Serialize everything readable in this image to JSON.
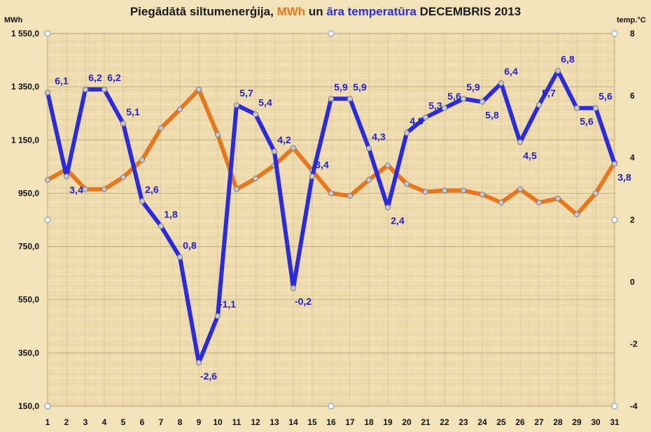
{
  "chart_data": {
    "type": "line",
    "title": {
      "part1": "Piegādātā siltumenerģija, ",
      "part2": "MWh",
      "part3": " un ",
      "part4": "āra temperatūra",
      "part5": " DECEMBRIS 2013"
    },
    "left_axis_label": "MWh",
    "right_axis_label": "temp.°C",
    "left_ylim": [
      150,
      1550
    ],
    "left_ticks": [
      "1 550,0",
      "1 350,0",
      "1 150,0",
      "950,0",
      "750,0",
      "550,0",
      "350,0",
      "150,0"
    ],
    "right_ylim": [
      -4,
      8
    ],
    "right_ticks": [
      "8",
      "6",
      "4",
      "2",
      "0",
      "-2",
      "-4"
    ],
    "grid": true,
    "categories": [
      "1",
      "2",
      "3",
      "4",
      "5",
      "6",
      "7",
      "8",
      "9",
      "10",
      "11",
      "12",
      "13",
      "14",
      "15",
      "16",
      "17",
      "18",
      "19",
      "20",
      "21",
      "22",
      "23",
      "24",
      "25",
      "26",
      "27",
      "28",
      "29",
      "30",
      "31"
    ],
    "series": [
      {
        "axis": "left",
        "color": "#e8761c",
        "values": [
          1000,
          1040,
          965,
          965,
          1010,
          1075,
          1195,
          1265,
          1340,
          1170,
          965,
          1005,
          1055,
          1120,
          1035,
          950,
          940,
          1000,
          1055,
          985,
          955,
          960,
          960,
          945,
          915,
          965,
          915,
          930,
          870,
          950,
          1065
        ]
      },
      {
        "axis": "right",
        "color": "#2a2ae0",
        "values": [
          6.1,
          3.4,
          6.2,
          6.2,
          5.1,
          2.6,
          1.8,
          0.8,
          -2.6,
          -1.1,
          5.7,
          5.4,
          4.2,
          -0.2,
          3.4,
          5.9,
          5.9,
          4.3,
          2.4,
          4.8,
          5.3,
          5.6,
          5.9,
          5.8,
          6.4,
          4.5,
          5.7,
          6.8,
          5.6,
          5.6,
          3.8
        ],
        "data_labels": [
          "6,1",
          "3,4",
          "6,2",
          "6,2",
          "5,1",
          "2,6",
          "1,8",
          "0,8",
          "-2,6",
          "-1,1",
          "5,7",
          "5,4",
          "4,2",
          "-0,2",
          "3,4",
          "5,9",
          "5,9",
          "4,3",
          "2,4",
          "4,8",
          "5,3",
          "5,6",
          "5,9",
          "5,8",
          "6,4",
          "4,5",
          "5,7",
          "6,8",
          "5,6",
          "5,6",
          "3,8"
        ]
      }
    ]
  }
}
